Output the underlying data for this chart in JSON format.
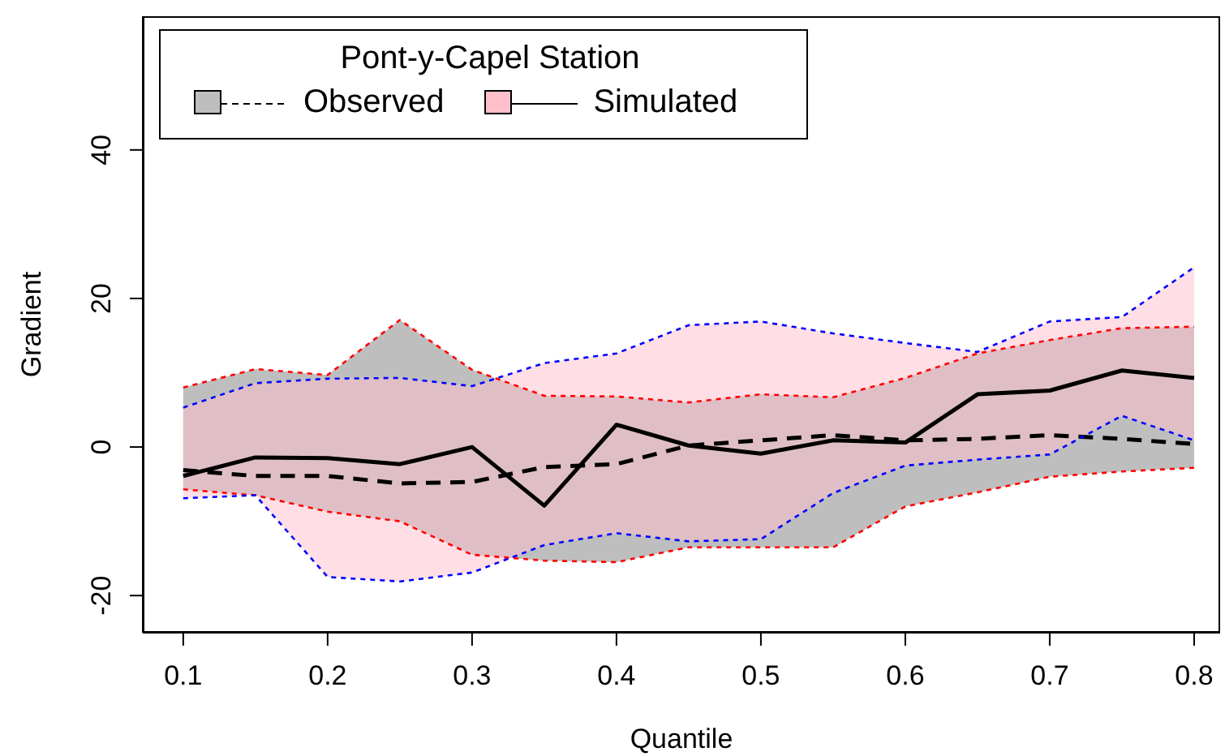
{
  "chart_data": {
    "type": "line",
    "xlabel": "Quantile",
    "ylabel": "Gradient",
    "legend_title": "Pont-y-Capel Station",
    "legend": "top left",
    "grid": false,
    "x": [
      0.1,
      0.15,
      0.2,
      0.25,
      0.3,
      0.35,
      0.4,
      0.45,
      0.5,
      0.55,
      0.6,
      0.65,
      0.7,
      0.75,
      0.8
    ],
    "xlim": [
      0.072,
      0.818
    ],
    "xticks": [
      0.1,
      0.2,
      0.3,
      0.4,
      0.5,
      0.6,
      0.7,
      0.8
    ],
    "ylim": [
      -25,
      58
    ],
    "yticks": [
      -20,
      0,
      20,
      40
    ],
    "series": [
      {
        "name": "Observed",
        "type": "line",
        "line_style": "dashed",
        "color": "#000000",
        "values": [
          -3.1,
          -3.9,
          -3.9,
          -4.9,
          -4.7,
          -2.7,
          -2.3,
          0.2,
          0.9,
          1.6,
          0.9,
          1.1,
          1.6,
          1.1,
          0.4
        ],
        "lower": [
          -5.7,
          -6.5,
          -8.7,
          -10,
          -14.5,
          -15.3,
          -15.5,
          -13.5,
          -13.5,
          -13.5,
          -8,
          -6.1,
          -4,
          -3.3,
          -2.8
        ],
        "upper": [
          8,
          10.5,
          9.7,
          17.1,
          10.4,
          6.9,
          6.8,
          6,
          7.1,
          6.7,
          9.3,
          12.6,
          14.4,
          16,
          16.2
        ]
      },
      {
        "type": "line",
        "line_style": "dotted",
        "color": "#ff0000",
        "values": [
          -5.7,
          -6.5,
          -8.7,
          -10,
          -14.5,
          -15.3,
          -15.5,
          -13.5,
          -13.5,
          -13.5,
          -8,
          -6.1,
          -4,
          -3.3,
          -2.8
        ]
      },
      {
        "type": "line",
        "line_style": "dotted",
        "color": "#ff0000",
        "values": [
          8,
          10.5,
          9.7,
          17.1,
          10.4,
          6.9,
          6.8,
          6,
          7.1,
          6.7,
          9.3,
          12.6,
          14.4,
          16,
          16.2
        ]
      },
      {
        "name": "Simulated",
        "type": "line",
        "line_style": "solid",
        "color": "#000000",
        "values": [
          -3.9,
          -1.4,
          -1.5,
          -2.3,
          0,
          -7.9,
          3,
          0.2,
          -0.9,
          0.9,
          0.6,
          7.1,
          7.6,
          10.3,
          9.3
        ],
        "lower": [
          -6.9,
          -6.5,
          -17.5,
          -18.1,
          -16.9,
          -13.2,
          -11.6,
          -12.7,
          -12.4,
          -6.2,
          -2.5,
          -1.7,
          -1,
          4.2,
          0.9
        ],
        "upper": [
          5.3,
          8.6,
          9.2,
          9.3,
          8.2,
          11.3,
          12.6,
          16.4,
          16.9,
          15.3,
          14,
          12.8,
          16.9,
          17.5,
          24.2
        ]
      },
      {
        "type": "line",
        "line_style": "dotted",
        "color": "#0000ff",
        "values": [
          -6.9,
          -6.5,
          -17.5,
          -18.1,
          -16.9,
          -13.2,
          -11.6,
          -12.7,
          -12.4,
          -6.2,
          -2.5,
          -1.7,
          -1,
          4.2,
          0.9
        ]
      },
      {
        "type": "line",
        "line_style": "dotted",
        "color": "#0000ff",
        "values": [
          5.3,
          8.6,
          9.2,
          9.3,
          8.2,
          11.3,
          12.6,
          16.4,
          16.9,
          15.3,
          14,
          12.8,
          16.9,
          17.5,
          24.2
        ]
      }
    ]
  }
}
